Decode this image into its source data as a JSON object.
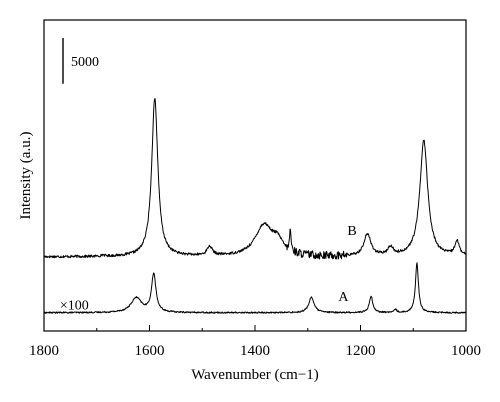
{
  "chart_data": {
    "type": "line",
    "title": "",
    "xlabel": "Wavenumber (cm−1)",
    "ylabel": "Intensity (a.u.)",
    "xlim": [
      1800,
      1000
    ],
    "x_reversed": true,
    "ylim": [
      -2000,
      32000
    ],
    "x_ticks": [
      1800,
      1600,
      1400,
      1200,
      1000
    ],
    "y_ticks_shown": false,
    "grid": false,
    "legend": "none",
    "scale_bar": {
      "label": "5000",
      "value": 5000
    },
    "series": [
      {
        "name": "B",
        "baseline": 6100,
        "noise": 140,
        "peaks": [
          {
            "x": 1688,
            "height": 150,
            "width": 3
          },
          {
            "x": 1590,
            "height": 17300,
            "width": 7
          },
          {
            "x": 1486,
            "height": 1000,
            "width": 6
          },
          {
            "x": 1383,
            "height": 3400,
            "width": 20
          },
          {
            "x": 1357,
            "height": 1300,
            "width": 12
          },
          {
            "x": 1333,
            "height": 2400,
            "width": 1.5
          },
          {
            "x": 1187,
            "height": 2400,
            "width": 8
          },
          {
            "x": 1143,
            "height": 900,
            "width": 6
          },
          {
            "x": 1080,
            "height": 12700,
            "width": 9
          },
          {
            "x": 1017,
            "height": 1600,
            "width": 5
          }
        ]
      },
      {
        "name": "A",
        "baseline": 0,
        "noise": 80,
        "peaks": [
          {
            "x": 1625,
            "height": 1600,
            "width": 12
          },
          {
            "x": 1592,
            "height": 4200,
            "width": 5
          },
          {
            "x": 1293,
            "height": 1700,
            "width": 6
          },
          {
            "x": 1180,
            "height": 1800,
            "width": 4
          },
          {
            "x": 1134,
            "height": 350,
            "width": 3
          },
          {
            "x": 1093,
            "height": 5400,
            "width": 3.5
          }
        ]
      }
    ],
    "annotations": [
      {
        "text": "B",
        "x": 1225,
        "y": 8500
      },
      {
        "text": "A",
        "x": 1242,
        "y": 1300
      },
      {
        "text": "×100",
        "x": 1770,
        "y": 350
      }
    ]
  }
}
